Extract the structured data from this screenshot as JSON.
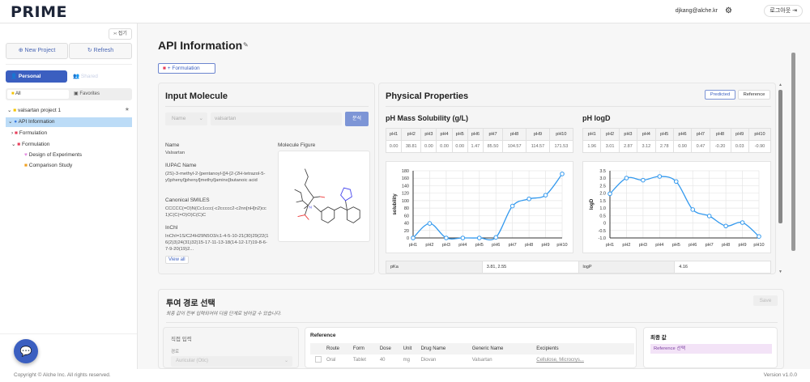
{
  "header": {
    "logo": "PRIME",
    "user_email": "djkang@alche.kr",
    "logout_label": "로그아웃"
  },
  "sidebar": {
    "collapse_label": "접기",
    "new_project": "New Project",
    "refresh": "Refresh",
    "tab_personal": "Personal",
    "tab_shared": "Shared",
    "filter_all": "All",
    "filter_favorites": "Favorites",
    "tree": [
      {
        "label": "valsartan project 1",
        "icon": "folder-icon"
      },
      {
        "label": "API Information",
        "icon": "pill-icon",
        "selected": true
      },
      {
        "label": "Formulation",
        "icon": "formulation-icon"
      },
      {
        "label": "Formulation",
        "icon": "formulation-icon"
      },
      {
        "label": "Design of Experiments",
        "icon": "doe-icon"
      },
      {
        "label": "Comparison Study",
        "icon": "study-icon"
      }
    ]
  },
  "page": {
    "title": "API Information",
    "formulation_button": "+ Formulation"
  },
  "input_molecule": {
    "title": "Input Molecule",
    "select_value": "Name",
    "input_value": "valsartan",
    "analyze_button": "분석",
    "name_label": "Name",
    "name": "Valsartan",
    "iupac_label": "IUPAC Name",
    "iupac": "(2S)-3-methyl-2-[pentanoyl-[[4-[2-(2H-tetrazol-5-yl)phenyl]phenyl]methyl]amino]butanoic acid",
    "smiles_label": "Canonical SMILES",
    "smiles": "CCCCC(=O)N(Cc1ccc(-c2ccccc2-c2nn[nH]n2)cc1)C(C(=O)O)C(C)C",
    "inchi_label": "InChI",
    "inchi": "InChI=1S/C24H29N5O3/c1-4-5-10-21(30)29(22(16(2)3)24(31)32)15-17-11-13-18(14-12-17)19-8-6-7-9-20(19)2...",
    "view_all": "View all",
    "figure_label": "Molecule Figure"
  },
  "physical": {
    "title": "Physical Properties",
    "predicted": "Predicted",
    "reference": "Reference",
    "pka_label": "pKa",
    "pka": "3.81, 2.55",
    "logp_label": "logP",
    "logp": "4.16"
  },
  "chart_data": [
    {
      "type": "line",
      "title": "pH Mass Solubility (g/L)",
      "ylabel": "solubility",
      "categories": [
        "pH1",
        "pH2",
        "pH3",
        "pH4",
        "pH5",
        "pH6",
        "pH7",
        "pH8",
        "pH9",
        "pH10"
      ],
      "values": [
        0.0,
        38.81,
        0.0,
        0.0,
        0.0,
        1.47,
        85.5,
        104.57,
        114.57,
        171.53
      ],
      "value_labels": [
        "0.00",
        "38.81",
        "0.00",
        "0.00",
        "0.00",
        "1.47",
        "85.50",
        "104.57",
        "114.57",
        "171.53"
      ],
      "ylim": [
        0,
        180
      ],
      "yticks": [
        "0",
        "20",
        "40",
        "60",
        "80",
        "100",
        "120",
        "140",
        "160",
        "180"
      ],
      "grid": true,
      "color": "#3399ee"
    },
    {
      "type": "line",
      "title": "pH logD",
      "ylabel": "logD",
      "categories": [
        "pH1",
        "pH2",
        "pH3",
        "pH4",
        "pH5",
        "pH6",
        "pH7",
        "pH8",
        "pH9",
        "pH10"
      ],
      "values": [
        1.96,
        3.01,
        2.87,
        3.12,
        2.78,
        0.9,
        0.47,
        -0.2,
        0.03,
        -0.9
      ],
      "value_labels": [
        "1.96",
        "3.01",
        "2.87",
        "3.12",
        "2.78",
        "0.90",
        "0.47",
        "-0.20",
        "0.03",
        "-0.90"
      ],
      "ylim": [
        -1.0,
        3.5
      ],
      "yticks": [
        "-1.0",
        "-0.5",
        "0",
        "0.5",
        "1.0",
        "1.5",
        "2.0",
        "2.5",
        "3.0",
        "3.5"
      ],
      "grid": true,
      "color": "#3399ee"
    }
  ],
  "dosage": {
    "title": "투여 경로 선택",
    "subtitle": "최종 값이 전부 입력되어야 다음 단계로 넘어갈 수 있습니다.",
    "save": "Save",
    "direct_title": "직접 입력",
    "route_label": "경로",
    "route_value": "Auricular (Otic)",
    "reference_title": "Reference",
    "columns": [
      "Route",
      "Form",
      "Dose",
      "Unit",
      "Drug Name",
      "Generic Name",
      "Excipients"
    ],
    "rows": [
      [
        "Oral",
        "Tablet",
        "40",
        "mg",
        "Diovan",
        "Valsartan",
        "Cellulose, Microcrys..."
      ]
    ],
    "final_title": "최종 값",
    "reference_select": "Reference 선택"
  },
  "footer": {
    "copyright": "Copyright © Alche Inc. All rights reserved.",
    "version": "Version v1.0.0"
  }
}
